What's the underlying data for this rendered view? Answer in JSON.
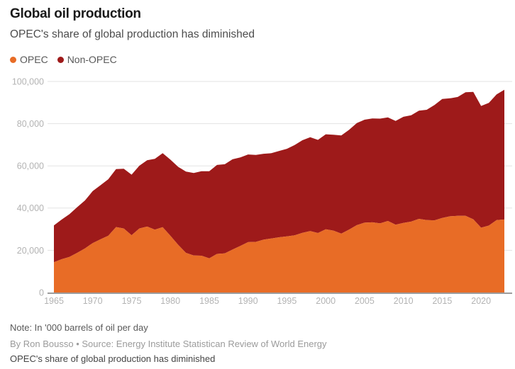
{
  "header": {
    "title": "Global oil production",
    "subtitle": "OPEC's share of global production has diminished"
  },
  "legend": [
    {
      "label": "OPEC",
      "color": "#e86c26"
    },
    {
      "label": "Non-OPEC",
      "color": "#9e1a1a"
    }
  ],
  "chart_data": {
    "type": "area",
    "stacked": true,
    "title": "Global oil production",
    "subtitle": "OPEC's share of global production has diminished",
    "xlabel": "",
    "ylabel": "",
    "unit": "'000 barrels of oil per day",
    "grid": true,
    "legend_position": "top-left",
    "xlim": [
      1965,
      2023
    ],
    "ylim": [
      0,
      100000
    ],
    "x": [
      1965,
      1966,
      1967,
      1968,
      1969,
      1970,
      1971,
      1972,
      1973,
      1974,
      1975,
      1976,
      1977,
      1978,
      1979,
      1980,
      1981,
      1982,
      1983,
      1984,
      1985,
      1986,
      1987,
      1988,
      1989,
      1990,
      1991,
      1992,
      1993,
      1994,
      1995,
      1996,
      1997,
      1998,
      1999,
      2000,
      2001,
      2002,
      2003,
      2004,
      2005,
      2006,
      2007,
      2008,
      2009,
      2010,
      2011,
      2012,
      2013,
      2014,
      2015,
      2016,
      2017,
      2018,
      2019,
      2020,
      2021,
      2022,
      2023
    ],
    "series": [
      {
        "name": "OPEC",
        "color": "#e86c26",
        "values": [
          14350,
          15770,
          16840,
          18800,
          20900,
          23410,
          25210,
          26890,
          30990,
          30350,
          27160,
          30330,
          31250,
          29810,
          30930,
          26890,
          22600,
          18780,
          17550,
          17440,
          16180,
          18280,
          18520,
          20320,
          22070,
          23870,
          23980,
          25050,
          25600,
          26160,
          26590,
          27090,
          28270,
          29130,
          28190,
          29960,
          29320,
          27900,
          29800,
          31900,
          33080,
          33250,
          32760,
          33890,
          32120,
          32940,
          33600,
          34900,
          34300,
          34200,
          35300,
          36100,
          36300,
          36300,
          34700,
          30700,
          31700,
          34300,
          34600
        ]
      },
      {
        "name": "Non-OPEC",
        "color": "#9e1a1a",
        "values": [
          17460,
          18800,
          20280,
          21640,
          22740,
          24660,
          25640,
          26780,
          27480,
          28270,
          28670,
          29730,
          31450,
          33520,
          35120,
          36060,
          36940,
          38520,
          39050,
          40060,
          41290,
          42150,
          42260,
          42790,
          41930,
          41520,
          41220,
          40690,
          40400,
          40910,
          41510,
          42760,
          43890,
          44420,
          44140,
          45020,
          45460,
          46540,
          47260,
          48360,
          48790,
          49240,
          49620,
          49060,
          49140,
          50310,
          50400,
          51250,
          52290,
          54630,
          56370,
          55910,
          56350,
          58570,
          60350,
          57700,
          58170,
          59550,
          61470
        ]
      }
    ],
    "y_ticks": [
      {
        "value": 0,
        "label": "0"
      },
      {
        "value": 20000,
        "label": "20,000"
      },
      {
        "value": 40000,
        "label": "40,000"
      },
      {
        "value": 60000,
        "label": "60,000"
      },
      {
        "value": 80000,
        "label": "80,000"
      },
      {
        "value": 100000,
        "label": "100,000"
      }
    ],
    "x_ticks": [
      {
        "value": 1965,
        "label": "1965"
      },
      {
        "value": 1970,
        "label": "1970"
      },
      {
        "value": 1975,
        "label": "1975"
      },
      {
        "value": 1980,
        "label": "1980"
      },
      {
        "value": 1985,
        "label": "1985"
      },
      {
        "value": 1990,
        "label": "1990"
      },
      {
        "value": 1995,
        "label": "1995"
      },
      {
        "value": 2000,
        "label": "2000"
      },
      {
        "value": 2005,
        "label": "2005"
      },
      {
        "value": 2010,
        "label": "2010"
      },
      {
        "value": 2015,
        "label": "2015"
      },
      {
        "value": 2020,
        "label": "2020"
      }
    ],
    "style": {
      "grid_color": "#e3e3e3",
      "axis_color": "#9c9c9c",
      "tick_color": "#b3b3b3"
    }
  },
  "footer": {
    "note": "Note: In '000 barrels of oil per day",
    "byline": "By Ron Bousso • Source: Energy Institute Statistican Review of World Energy",
    "dek": "OPEC's share of global production has diminished"
  }
}
